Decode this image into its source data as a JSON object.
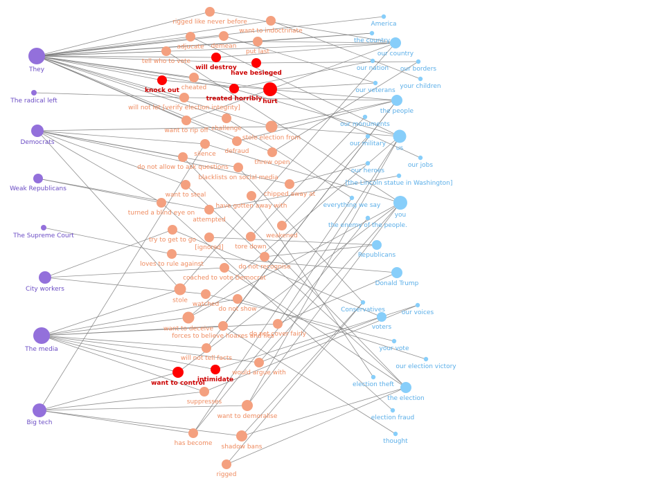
{
  "colors": {
    "actor": "#9370db",
    "action": "#f4a07f",
    "key_action": "#ff0000",
    "target": "#87cefa",
    "edge": "#7a7a7a"
  },
  "actors": [
    {
      "id": "they",
      "label": "They",
      "weight": 3
    },
    {
      "id": "radical_left",
      "label": "The radical left",
      "weight": 1
    },
    {
      "id": "democrats",
      "label": "Democrats",
      "weight": 2
    },
    {
      "id": "weak_republicans",
      "label": "Weak Republicans",
      "weight": 1.5
    },
    {
      "id": "supreme_court",
      "label": "The Supreme Court",
      "weight": 1
    },
    {
      "id": "city_workers",
      "label": "City workers",
      "weight": 2
    },
    {
      "id": "media",
      "label": "The media",
      "weight": 3
    },
    {
      "id": "big_tech",
      "label": "Big tech",
      "weight": 2.5
    }
  ],
  "actions": [
    {
      "id": "rigged_like",
      "label": "rigged like never before",
      "key": false,
      "weight": 2
    },
    {
      "id": "indoctrinate",
      "label": "want to indoctrinate",
      "key": false,
      "weight": 2
    },
    {
      "id": "demean",
      "label": "demean",
      "key": false,
      "weight": 2
    },
    {
      "id": "adjucate",
      "label": "adjucate",
      "key": false,
      "weight": 2
    },
    {
      "id": "put_last",
      "label": "put last",
      "key": false,
      "weight": 2
    },
    {
      "id": "tell_vote",
      "label": "tell who to vote",
      "key": false,
      "weight": 2
    },
    {
      "id": "will_destroy",
      "label": "will destroy",
      "key": true,
      "weight": 2
    },
    {
      "id": "besieged",
      "label": "have besieged",
      "key": true,
      "weight": 2
    },
    {
      "id": "knock_out",
      "label": "knock out",
      "key": true,
      "weight": 2
    },
    {
      "id": "cheated",
      "label": "cheated",
      "key": false,
      "weight": 2
    },
    {
      "id": "treated_horribly",
      "label": "treated horribly",
      "key": true,
      "weight": 2
    },
    {
      "id": "hurt",
      "label": "hurt",
      "key": true,
      "weight": 3.5
    },
    {
      "id": "will_not_let",
      "label": "will not let [verify election integrity]",
      "key": false,
      "weight": 2
    },
    {
      "id": "rip_off",
      "label": "want to rip off",
      "key": false,
      "weight": 2
    },
    {
      "id": "challenge",
      "label": "challenge",
      "key": false,
      "weight": 2
    },
    {
      "id": "stole_from",
      "label": "stole election from",
      "key": false,
      "weight": 3
    },
    {
      "id": "silence",
      "label": "silence",
      "key": false,
      "weight": 2
    },
    {
      "id": "defraud",
      "label": "defraud",
      "key": false,
      "weight": 2
    },
    {
      "id": "threw_open",
      "label": "threw open",
      "key": false,
      "weight": 2
    },
    {
      "id": "not_allow_ask",
      "label": "do not allow to ask questions",
      "key": false,
      "weight": 2
    },
    {
      "id": "blacklists",
      "label": "blacklists on social media",
      "key": false,
      "weight": 2
    },
    {
      "id": "want_steal",
      "label": "want to steal",
      "key": false,
      "weight": 2
    },
    {
      "id": "chipped_away",
      "label": "chipped away at",
      "key": false,
      "weight": 2
    },
    {
      "id": "blind_eye",
      "label": "turned a blind eye on",
      "key": false,
      "weight": 2
    },
    {
      "id": "gotten_away",
      "label": "have gotten away with",
      "key": false,
      "weight": 2
    },
    {
      "id": "attempted",
      "label": "attempted",
      "key": false,
      "weight": 2
    },
    {
      "id": "weakened",
      "label": "weakened",
      "key": false,
      "weight": 2
    },
    {
      "id": "try_get",
      "label": "try to get to go",
      "key": false,
      "weight": 2
    },
    {
      "id": "ignored",
      "label": "[ignored]",
      "key": false,
      "weight": 2
    },
    {
      "id": "tore_down",
      "label": "tore down",
      "key": false,
      "weight": 2
    },
    {
      "id": "loves_rule",
      "label": "loves to rule against",
      "key": false,
      "weight": 2
    },
    {
      "id": "not_recognise",
      "label": "do not recognise",
      "key": false,
      "weight": 2
    },
    {
      "id": "coached",
      "label": "coached to vote Democrat",
      "key": false,
      "weight": 2
    },
    {
      "id": "stole",
      "label": "stole",
      "key": false,
      "weight": 3
    },
    {
      "id": "watched",
      "label": "watched",
      "key": false,
      "weight": 2
    },
    {
      "id": "not_show",
      "label": "do not show",
      "key": false,
      "weight": 2
    },
    {
      "id": "want_deceive",
      "label": "want to deceive",
      "key": false,
      "weight": 3
    },
    {
      "id": "forces_believe",
      "label": "forces to believe hoaxes and lies",
      "key": false,
      "weight": 2
    },
    {
      "id": "not_cover",
      "label": "do not cover fairly",
      "key": false,
      "weight": 2
    },
    {
      "id": "not_tell",
      "label": "will not tell facts",
      "key": false,
      "weight": 2
    },
    {
      "id": "argue",
      "label": "would argue with",
      "key": false,
      "weight": 2
    },
    {
      "id": "want_control",
      "label": "want to control",
      "key": true,
      "weight": 2.5
    },
    {
      "id": "intimidate",
      "label": "intimidate",
      "key": true,
      "weight": 2
    },
    {
      "id": "suppresses",
      "label": "suppresses",
      "key": false,
      "weight": 2
    },
    {
      "id": "demoralise",
      "label": "want to demoralise",
      "key": false,
      "weight": 2.5
    },
    {
      "id": "has_become",
      "label": "has become",
      "key": false,
      "weight": 2
    },
    {
      "id": "shadow_bans",
      "label": "shadow bans",
      "key": false,
      "weight": 2.5
    },
    {
      "id": "rigged",
      "label": "rigged",
      "key": false,
      "weight": 2
    }
  ],
  "targets": [
    {
      "id": "america",
      "label": "America",
      "weight": 1
    },
    {
      "id": "the_country",
      "label": "the country",
      "weight": 1
    },
    {
      "id": "our_country",
      "label": "our country",
      "weight": 2.5
    },
    {
      "id": "our_borders",
      "label": "our borders",
      "weight": 1
    },
    {
      "id": "our_nation",
      "label": "our nation",
      "weight": 1
    },
    {
      "id": "our_children",
      "label": "your children",
      "weight": 1
    },
    {
      "id": "our_veterans",
      "label": "our veterans",
      "weight": 1
    },
    {
      "id": "the_people",
      "label": "the people",
      "weight": 2.5
    },
    {
      "id": "our_monuments",
      "label": "our monuments",
      "weight": 1
    },
    {
      "id": "us",
      "label": "us",
      "weight": 3
    },
    {
      "id": "our_military",
      "label": "our military",
      "weight": 1
    },
    {
      "id": "our_jobs",
      "label": "our jobs",
      "weight": 1
    },
    {
      "id": "our_heroes",
      "label": "our heroes",
      "weight": 1
    },
    {
      "id": "lincoln",
      "label": "[the Lincoln statue in Washington]",
      "weight": 1
    },
    {
      "id": "everything",
      "label": "everything we say",
      "weight": 1
    },
    {
      "id": "you",
      "label": "you",
      "weight": 3.5
    },
    {
      "id": "enemy",
      "label": "the enemy of the people.",
      "weight": 1
    },
    {
      "id": "republicans",
      "label": "Republicans",
      "weight": 2
    },
    {
      "id": "donald_trump",
      "label": "Donald Trump",
      "weight": 2.5
    },
    {
      "id": "our_voices",
      "label": "our voices",
      "weight": 1
    },
    {
      "id": "conservatives",
      "label": "Conservatives",
      "weight": 1
    },
    {
      "id": "voters",
      "label": "voters",
      "weight": 2
    },
    {
      "id": "your_vote",
      "label": "your vote",
      "weight": 1
    },
    {
      "id": "election_victory",
      "label": "our election victory",
      "weight": 1
    },
    {
      "id": "election_theft",
      "label": "election theft",
      "weight": 1
    },
    {
      "id": "the_election",
      "label": "the election",
      "weight": 2.5
    },
    {
      "id": "election_fraud",
      "label": "election fraud",
      "weight": 1
    },
    {
      "id": "thought",
      "label": "thought",
      "weight": 1
    }
  ],
  "edges": [
    [
      "they",
      "rigged_like"
    ],
    [
      "they",
      "indoctrinate"
    ],
    [
      "they",
      "demean"
    ],
    [
      "they",
      "adjucate"
    ],
    [
      "they",
      "put_last"
    ],
    [
      "they",
      "tell_vote"
    ],
    [
      "they",
      "will_destroy"
    ],
    [
      "they",
      "besieged"
    ],
    [
      "they",
      "knock_out"
    ],
    [
      "they",
      "cheated"
    ],
    [
      "they",
      "treated_horribly"
    ],
    [
      "they",
      "hurt"
    ],
    [
      "they",
      "will_not_let"
    ],
    [
      "they",
      "rip_off"
    ],
    [
      "they",
      "challenge"
    ],
    [
      "they",
      "stole_from"
    ],
    [
      "they",
      "defraud"
    ],
    [
      "they",
      "threw_open"
    ],
    [
      "they",
      "america"
    ],
    [
      "they",
      "the_country"
    ],
    [
      "they",
      "our_country"
    ],
    [
      "radical_left",
      "will_not_let"
    ],
    [
      "democrats",
      "not_allow_ask"
    ],
    [
      "democrats",
      "want_steal"
    ],
    [
      "democrats",
      "blind_eye"
    ],
    [
      "democrats",
      "chipped_away"
    ],
    [
      "democrats",
      "stole"
    ],
    [
      "democrats",
      "silence"
    ],
    [
      "democrats",
      "blacklists"
    ],
    [
      "democrats",
      "stole_from"
    ],
    [
      "weak_republicans",
      "blind_eye"
    ],
    [
      "weak_republicans",
      "attempted"
    ],
    [
      "supreme_court",
      "loves_rule"
    ],
    [
      "city_workers",
      "coached"
    ],
    [
      "city_workers",
      "watched"
    ],
    [
      "city_workers",
      "try_get"
    ],
    [
      "media",
      "want_deceive"
    ],
    [
      "media",
      "forces_believe"
    ],
    [
      "media",
      "not_cover"
    ],
    [
      "media",
      "not_tell"
    ],
    [
      "media",
      "argue"
    ],
    [
      "media",
      "want_control"
    ],
    [
      "media",
      "intimidate"
    ],
    [
      "media",
      "not_show"
    ],
    [
      "media",
      "suppresses"
    ],
    [
      "media",
      "stole"
    ],
    [
      "big_tech",
      "suppresses"
    ],
    [
      "big_tech",
      "demoralise"
    ],
    [
      "big_tech",
      "shadow_bans"
    ],
    [
      "big_tech",
      "has_become"
    ],
    [
      "big_tech",
      "silence"
    ],
    [
      "big_tech",
      "want_control"
    ],
    [
      "rigged_like",
      "our_country"
    ],
    [
      "indoctrinate",
      "our_children"
    ],
    [
      "demean",
      "our_veterans"
    ],
    [
      "put_last",
      "our_country"
    ],
    [
      "put_last",
      "the_country"
    ],
    [
      "adjucate",
      "us"
    ],
    [
      "tell_vote",
      "you"
    ],
    [
      "will_destroy",
      "our_country"
    ],
    [
      "besieged",
      "our_borders"
    ],
    [
      "knock_out",
      "the_people"
    ],
    [
      "cheated",
      "us"
    ],
    [
      "treated_horribly",
      "our_nation"
    ],
    [
      "hurt",
      "our_veterans"
    ],
    [
      "hurt",
      "our_jobs"
    ],
    [
      "will_not_let",
      "the_people"
    ],
    [
      "rip_off",
      "our_country"
    ],
    [
      "challenge",
      "everything"
    ],
    [
      "stole_from",
      "us"
    ],
    [
      "stole_from",
      "the_people"
    ],
    [
      "defraud",
      "the_people"
    ],
    [
      "threw_open",
      "our_borders"
    ],
    [
      "silence",
      "you"
    ],
    [
      "not_allow_ask",
      "the_election"
    ],
    [
      "blacklists",
      "conservatives"
    ],
    [
      "want_steal",
      "the_election"
    ],
    [
      "chipped_away",
      "our_heroes"
    ],
    [
      "blind_eye",
      "election_fraud"
    ],
    [
      "gotten_away",
      "election_theft"
    ],
    [
      "attempted",
      "lincoln"
    ],
    [
      "weakened",
      "our_military"
    ],
    [
      "try_get",
      "voters"
    ],
    [
      "ignored",
      "republicans"
    ],
    [
      "tore_down",
      "our_monuments"
    ],
    [
      "loves_rule",
      "donald_trump"
    ],
    [
      "not_recognise",
      "republicans"
    ],
    [
      "coached",
      "the_election"
    ],
    [
      "stole",
      "our_country"
    ],
    [
      "watched",
      "your_vote"
    ],
    [
      "not_show",
      "election_victory"
    ],
    [
      "want_deceive",
      "you"
    ],
    [
      "forces_believe",
      "the_people"
    ],
    [
      "not_cover",
      "donald_trump"
    ],
    [
      "not_tell",
      "the_people"
    ],
    [
      "argue",
      "voters"
    ],
    [
      "want_control",
      "you"
    ],
    [
      "intimidate",
      "our_voices"
    ],
    [
      "suppresses",
      "our_voices"
    ],
    [
      "demoralise",
      "you"
    ],
    [
      "has_become",
      "enemy"
    ],
    [
      "shadow_bans",
      "conservatives"
    ],
    [
      "rigged",
      "the_election"
    ],
    [
      "shadow_bans",
      "the_election"
    ],
    [
      "demoralise",
      "us"
    ],
    [
      "has_become",
      "everything"
    ],
    [
      "rigged",
      "conservatives"
    ],
    [
      "not_cover",
      "us"
    ],
    [
      "argue",
      "you"
    ],
    [
      "want_deceive",
      "us"
    ],
    [
      "forces_believe",
      "thought"
    ]
  ]
}
